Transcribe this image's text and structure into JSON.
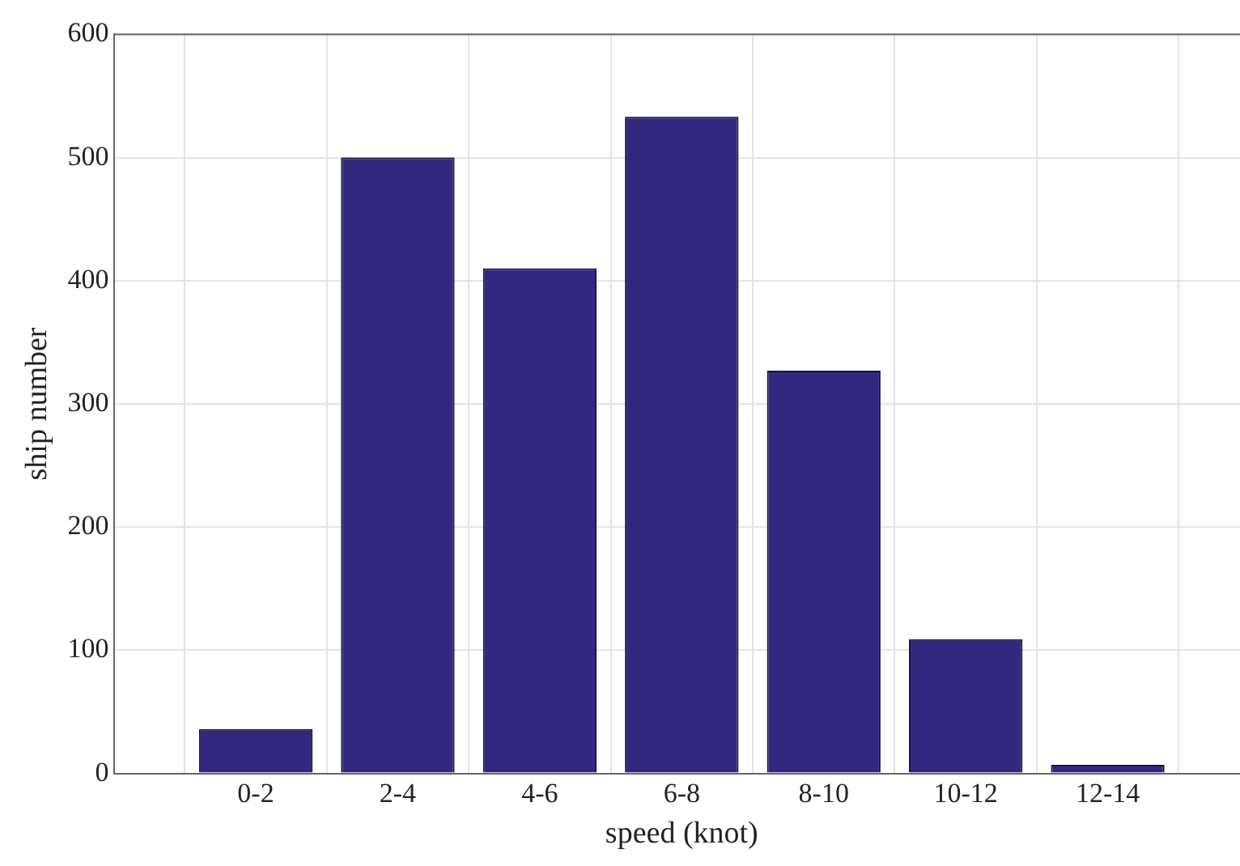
{
  "chart_data": {
    "type": "bar",
    "xlabel": "speed (knot)",
    "ylabel": "ship number",
    "categories": [
      "0-2",
      "2-4",
      "4-6",
      "6-8",
      "8-10",
      "10-12",
      "12-14"
    ],
    "values": [
      36,
      500,
      410,
      533,
      327,
      109,
      7
    ],
    "color": "#33287f",
    "ylim": [
      0,
      600
    ],
    "yticks": [
      0,
      100,
      200,
      300,
      400,
      500,
      600
    ],
    "grid": true
  }
}
